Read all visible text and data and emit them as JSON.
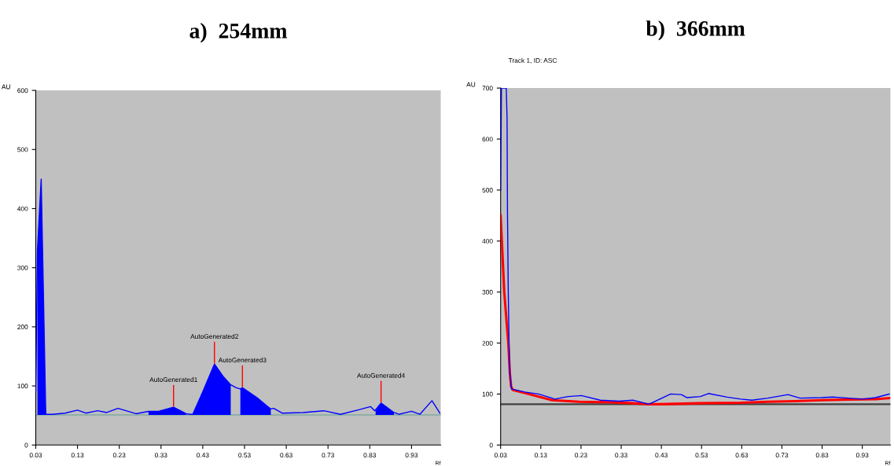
{
  "chart_data": [
    {
      "type": "line",
      "title": "a)  254mm",
      "xlabel": "Rf",
      "ylabel": "AU",
      "xlim": [
        0.03,
        1.0
      ],
      "ylim": [
        0,
        600
      ],
      "xticks": [
        0.03,
        0.13,
        0.23,
        0.33,
        0.43,
        0.53,
        0.63,
        0.73,
        0.83,
        0.93
      ],
      "yticks": [
        0,
        100,
        200,
        300,
        400,
        500,
        600
      ],
      "grid": false,
      "series": [
        {
          "color": "#0000ff",
          "x": [
            0.03,
            0.034,
            0.043,
            0.054,
            0.07,
            0.1,
            0.13,
            0.15,
            0.178,
            0.2,
            0.227,
            0.27,
            0.3,
            0.324,
            0.36,
            0.39,
            0.4,
            0.406,
            0.43,
            0.458,
            0.48,
            0.497,
            0.51,
            0.52,
            0.525,
            0.56,
            0.593,
            0.6,
            0.62,
            0.67,
            0.72,
            0.76,
            0.806,
            0.832,
            0.842,
            0.857,
            0.888,
            0.9,
            0.93,
            0.95,
            0.979,
            0.998
          ],
          "values": [
            90,
            330,
            450,
            52,
            52,
            54,
            59,
            54,
            58,
            55,
            62,
            53,
            57,
            57,
            64,
            53,
            52,
            52,
            90,
            137,
            115,
            102,
            97,
            95,
            97,
            80,
            61,
            62,
            54,
            55,
            58,
            52,
            60,
            65,
            58,
            71,
            55,
            52,
            57,
            52,
            75,
            54
          ]
        },
        {
          "type": "area",
          "color": "#0000ff",
          "x": [
            0.034,
            0.043,
            0.054
          ],
          "values": [
            330,
            450,
            52
          ]
        },
        {
          "type": "area",
          "color": "#0000ff",
          "x": [
            0.3,
            0.324,
            0.36,
            0.39
          ],
          "values": [
            57,
            57,
            64,
            53
          ]
        },
        {
          "type": "area",
          "color": "#0000ff",
          "x": [
            0.406,
            0.43,
            0.458,
            0.48,
            0.497
          ],
          "values": [
            52,
            90,
            137,
            115,
            102
          ]
        },
        {
          "type": "area",
          "color": "#0000ff",
          "x": [
            0.52,
            0.525,
            0.56,
            0.593
          ],
          "values": [
            95,
            97,
            80,
            61
          ]
        },
        {
          "type": "area",
          "color": "#0000ff",
          "x": [
            0.844,
            0.857,
            0.888
          ],
          "values": [
            58,
            71,
            55
          ]
        }
      ],
      "ref_lines": [
        {
          "axis": "y",
          "value": 51,
          "color": "#8fb0a8"
        }
      ],
      "annotations": [
        {
          "text": "AutoGenerated1",
          "x": 0.36,
          "y": 64
        },
        {
          "text": "AutoGenerated2",
          "x": 0.458,
          "y": 137
        },
        {
          "text": "AutoGenerated3",
          "x": 0.525,
          "y": 97
        },
        {
          "text": "AutoGenerated4",
          "x": 0.857,
          "y": 71
        }
      ]
    },
    {
      "type": "line",
      "title": "b)  366mm",
      "xlabel": "Rf",
      "ylabel": "AU",
      "xlim": [
        0.03,
        1.0
      ],
      "ylim": [
        0,
        700
      ],
      "xticks": [
        0.03,
        0.13,
        0.23,
        0.33,
        0.43,
        0.53,
        0.63,
        0.73,
        0.83,
        0.93
      ],
      "yticks": [
        0,
        100,
        200,
        300,
        400,
        500,
        600,
        700
      ],
      "grid": false,
      "series": [
        {
          "color": "#ff0000",
          "x": [
            0.03,
            0.039,
            0.049,
            0.053,
            0.056,
            0.06,
            0.09,
            0.158,
            0.225,
            0.292,
            0.359,
            0.399,
            0.426,
            0.527,
            0.628,
            0.695,
            0.762,
            0.829,
            0.896,
            0.963,
            0.997
          ],
          "values": [
            450,
            300,
            200,
            140,
            115,
            108,
            102,
            88,
            85,
            84,
            82,
            80,
            80,
            82,
            83,
            85,
            86,
            88,
            89,
            90,
            92
          ]
        },
        {
          "color": "#0000ff",
          "x": [
            0.03,
            0.032,
            0.044,
            0.046,
            0.047,
            0.049,
            0.051,
            0.053,
            0.057,
            0.09,
            0.124,
            0.158,
            0.164,
            0.198,
            0.231,
            0.278,
            0.325,
            0.359,
            0.399,
            0.453,
            0.48,
            0.493,
            0.527,
            0.547,
            0.594,
            0.628,
            0.655,
            0.695,
            0.745,
            0.775,
            0.829,
            0.856,
            0.896,
            0.93,
            0.963,
            0.997
          ],
          "values": [
            500,
            700,
            700,
            640,
            458,
            300,
            200,
            140,
            110,
            104,
            100,
            92,
            90,
            95,
            97,
            88,
            86,
            88,
            80,
            100,
            99,
            93,
            95,
            101,
            94,
            90,
            88,
            92,
            99,
            92,
            93,
            94,
            92,
            90,
            93,
            100
          ]
        }
      ],
      "ref_lines": [
        {
          "axis": "y",
          "value": 80,
          "color": "#404040"
        }
      ],
      "annotations": [
        "Track 1, ID: ASC"
      ]
    }
  ]
}
